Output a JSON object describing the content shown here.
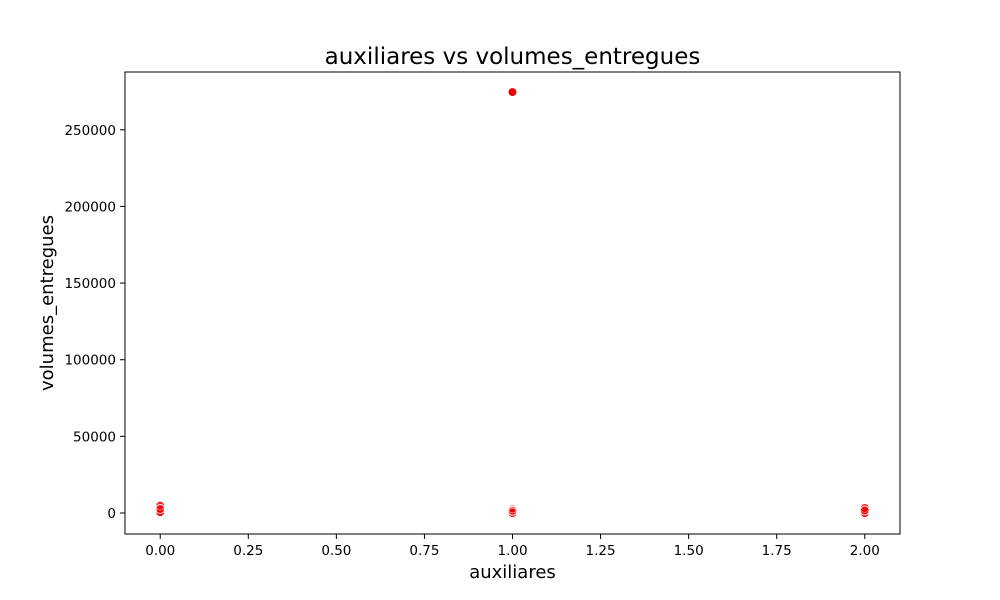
{
  "chart_data": {
    "type": "scatter",
    "title": "auxiliares vs volumes_entregues",
    "xlabel": "auxiliares",
    "ylabel": "volumes_entregues",
    "xlim": [
      -0.1,
      2.1
    ],
    "ylim": [
      -13700,
      287700
    ],
    "x_ticks": [
      0.0,
      0.25,
      0.5,
      0.75,
      1.0,
      1.25,
      1.5,
      1.75,
      2.0
    ],
    "x_tick_labels": [
      "0.00",
      "0.25",
      "0.50",
      "0.75",
      "1.00",
      "1.25",
      "1.50",
      "1.75",
      "2.00"
    ],
    "y_ticks": [
      0,
      50000,
      100000,
      150000,
      200000,
      250000
    ],
    "y_tick_labels": [
      "0",
      "50000",
      "100000",
      "150000",
      "200000",
      "250000"
    ],
    "grid": false,
    "legend": "none",
    "marker_color": "#ee0000",
    "marker_edge_color": "#ffffff",
    "points": [
      {
        "x": 0.0,
        "y": 0,
        "opacity": 1.0
      },
      {
        "x": 0.0,
        "y": 600,
        "opacity": 0.9
      },
      {
        "x": 0.0,
        "y": 4800,
        "opacity": 0.85
      },
      {
        "x": 0.0,
        "y": 2600,
        "opacity": 0.5
      },
      {
        "x": 1.0,
        "y": 274600,
        "opacity": 1.0
      },
      {
        "x": 1.0,
        "y": 0,
        "opacity": 1.0
      },
      {
        "x": 1.0,
        "y": 3000,
        "opacity": 0.25
      },
      {
        "x": 1.0,
        "y": 1500,
        "opacity": 0.4
      },
      {
        "x": 2.0,
        "y": 0,
        "opacity": 1.0
      },
      {
        "x": 2.0,
        "y": 3300,
        "opacity": 0.9
      },
      {
        "x": 2.0,
        "y": 1600,
        "opacity": 0.6
      }
    ]
  }
}
